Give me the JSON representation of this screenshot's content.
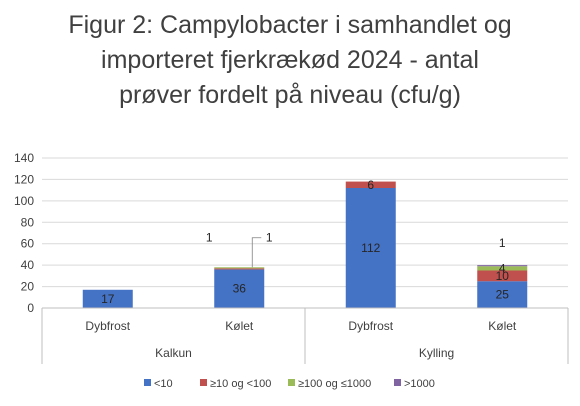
{
  "chart_data": {
    "type": "bar",
    "stacked": true,
    "title_lines": [
      "Figur 2: Campylobacter i samhandlet og",
      "importeret  fjerkrækød 2024 - antal",
      "prøver fordelt på niveau (cfu/g)"
    ],
    "categories": [
      "Dybfrost",
      "Kølet",
      "Dybfrost",
      "Kølet"
    ],
    "groups": [
      {
        "label": "Kalkun",
        "categories": [
          0,
          1
        ]
      },
      {
        "label": "Kylling",
        "categories": [
          2,
          3
        ]
      }
    ],
    "series": [
      {
        "name": "<10",
        "color": "#4472C4",
        "values": [
          17,
          36,
          112,
          25
        ]
      },
      {
        "name": "≥10 og <100",
        "color": "#C0504D",
        "values": [
          0,
          1,
          6,
          10
        ]
      },
      {
        "name": "≥100 og ≤1000",
        "color": "#9BBB59",
        "values": [
          0,
          1,
          0,
          4
        ]
      },
      {
        "name": ">1000",
        "color": "#8064A2",
        "values": [
          0,
          0,
          0,
          1
        ]
      }
    ],
    "data_labels": [
      {
        "category": 0,
        "series": 0,
        "text": "17"
      },
      {
        "category": 1,
        "series": 0,
        "text": "36"
      },
      {
        "category": 1,
        "series": 1,
        "text": "1"
      },
      {
        "category": 1,
        "series": 2,
        "text": "1"
      },
      {
        "category": 2,
        "series": 0,
        "text": "112"
      },
      {
        "category": 2,
        "series": 1,
        "text": "6"
      },
      {
        "category": 3,
        "series": 0,
        "text": "25"
      },
      {
        "category": 3,
        "series": 1,
        "text": "10"
      },
      {
        "category": 3,
        "series": 2,
        "text": "4"
      },
      {
        "category": 3,
        "series": 3,
        "text": "1"
      }
    ],
    "ylim": [
      0,
      140
    ],
    "yticks": [
      0,
      20,
      40,
      60,
      80,
      100,
      120,
      140
    ],
    "grid": true,
    "legend_position": "bottom"
  }
}
